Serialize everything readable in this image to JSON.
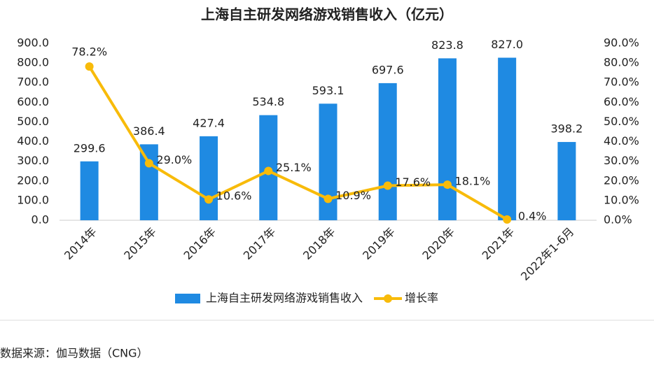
{
  "chart_data": {
    "type": "bar-line",
    "title": "上海自主研发网络游戏销售收入（亿元）",
    "categories": [
      "2014年",
      "2015年",
      "2016年",
      "2017年",
      "2018年",
      "2019年",
      "2020年",
      "2021年",
      "2022年1-6月"
    ],
    "series": [
      {
        "name": "上海自主研发网络游戏销售收入",
        "type": "bar",
        "color": "#1f8ae2",
        "values": [
          299.6,
          386.4,
          427.4,
          534.8,
          593.1,
          697.6,
          823.8,
          827.0,
          398.2
        ],
        "value_labels": [
          "299.6",
          "386.4",
          "427.4",
          "534.8",
          "593.1",
          "697.6",
          "823.8",
          "827.0",
          "398.2"
        ]
      },
      {
        "name": "增长率",
        "type": "line",
        "axis": "y2",
        "color": "#f8bb0a",
        "values": [
          78.2,
          29.0,
          10.6,
          25.1,
          10.9,
          17.6,
          18.1,
          0.4,
          null
        ],
        "value_labels": [
          "78.2%",
          "29.0%",
          "10.6%",
          "25.1%",
          "10.9%",
          "17.6%",
          "18.1%",
          "0.4%",
          null
        ]
      }
    ],
    "ylim": [
      0,
      900
    ],
    "yticks": [
      {
        "value": 0,
        "label": "0.0"
      },
      {
        "value": 100,
        "label": "100.0"
      },
      {
        "value": 200,
        "label": "200.0"
      },
      {
        "value": 300,
        "label": "300.0"
      },
      {
        "value": 400,
        "label": "400.0"
      },
      {
        "value": 500,
        "label": "500.0"
      },
      {
        "value": 600,
        "label": "600.0"
      },
      {
        "value": 700,
        "label": "700.0"
      },
      {
        "value": 800,
        "label": "800.0"
      },
      {
        "value": 900,
        "label": "900.0"
      }
    ],
    "y2lim": [
      0,
      90
    ],
    "y2ticks": [
      {
        "value": 0,
        "label": "0.0%"
      },
      {
        "value": 10,
        "label": "10.0%"
      },
      {
        "value": 20,
        "label": "20.0%"
      },
      {
        "value": 30,
        "label": "30.0%"
      },
      {
        "value": 40,
        "label": "40.0%"
      },
      {
        "value": 50,
        "label": "50.0%"
      },
      {
        "value": 60,
        "label": "60.0%"
      },
      {
        "value": 70,
        "label": "70.0%"
      },
      {
        "value": 80,
        "label": "80.0%"
      },
      {
        "value": 90,
        "label": "90.0%"
      }
    ],
    "grid": false,
    "legend": "bottom",
    "source": "数据来源：伽马数据（CNG）"
  }
}
